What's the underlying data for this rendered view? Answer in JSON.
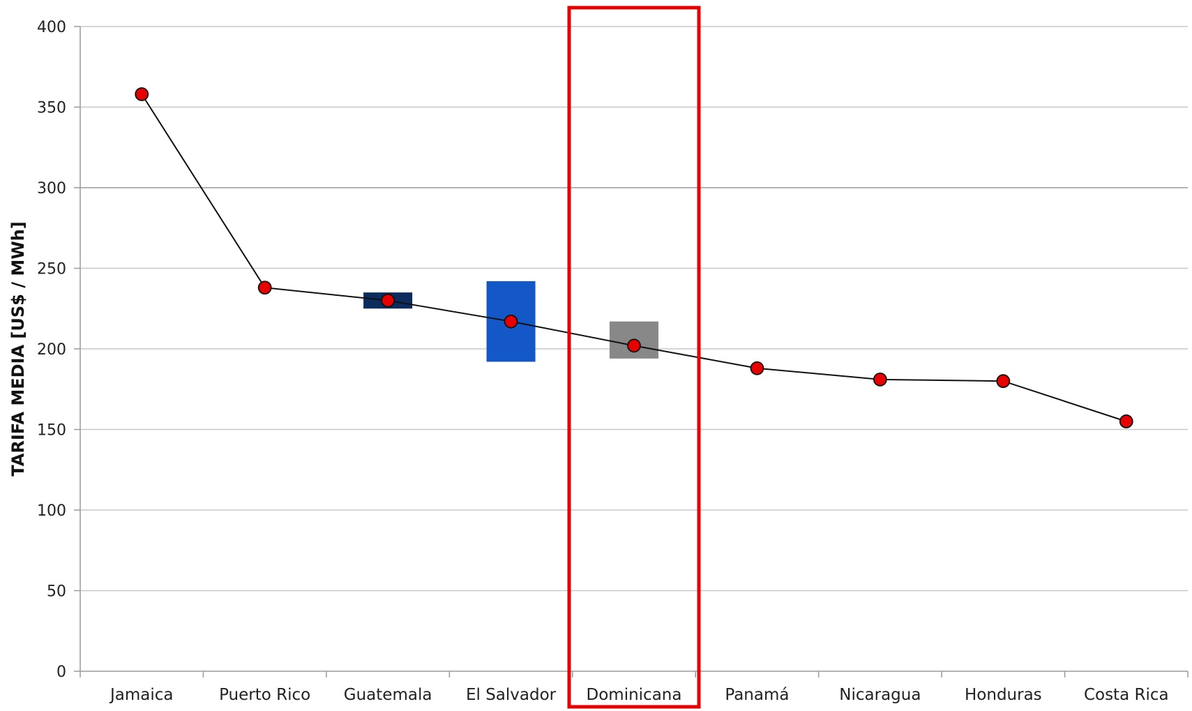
{
  "chart_data": {
    "type": "line",
    "title": "",
    "xlabel": "",
    "ylabel": "TARIFA MEDIA [US$ / MWh]",
    "ylim": [
      0,
      400
    ],
    "yticks": [
      0,
      50,
      100,
      150,
      200,
      250,
      300,
      350,
      400
    ],
    "grid": true,
    "legend": "none",
    "categories": [
      "Jamaica",
      "Puerto Rico",
      "Guatemala",
      "El Salvador",
      "Dominicana",
      "Panamá",
      "Nicaragua",
      "Honduras",
      "Costa Rica"
    ],
    "series": [
      {
        "values": [
          358,
          238,
          230,
          217,
          202,
          188,
          181,
          180,
          155
        ]
      }
    ],
    "ranges": [
      {
        "category": "Guatemala",
        "low": 225,
        "high": 235,
        "color": "#0b2c5c"
      },
      {
        "category": "El Salvador",
        "low": 192,
        "high": 242,
        "color": "#1458c8"
      },
      {
        "category": "Dominicana",
        "low": 194,
        "high": 217,
        "color": "#888888"
      }
    ],
    "highlight": {
      "category": "Dominicana",
      "color": "#e60000"
    },
    "colors": {
      "line": "#111111",
      "marker_fill": "#e60000",
      "marker_stroke": "#111111",
      "grid": "#c8c8c8",
      "axis": "#9a9a9a"
    }
  }
}
